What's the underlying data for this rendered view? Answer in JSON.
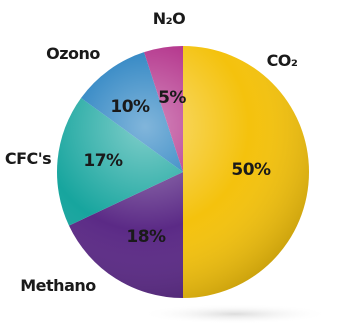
{
  "chart_data": {
    "type": "pie",
    "title": "",
    "slices": [
      {
        "name": "CO2",
        "label": "CO₂",
        "value": 50,
        "value_label": "50%",
        "color": "#f4c20d"
      },
      {
        "name": "Methano",
        "label": "Methano",
        "value": 18,
        "value_label": "18%",
        "color": "#5b2a86"
      },
      {
        "name": "CFC's",
        "label": "CFC's",
        "value": 17,
        "value_label": "17%",
        "color": "#17a59e"
      },
      {
        "name": "Ozono",
        "label": "Ozono",
        "value": 10,
        "value_label": "10%",
        "color": "#1a79bd"
      },
      {
        "name": "N2O",
        "label": "N₂O",
        "value": 5,
        "value_label": "5%",
        "color": "#b02a86"
      }
    ],
    "start_angle_deg": 0,
    "direction": "clockwise"
  }
}
